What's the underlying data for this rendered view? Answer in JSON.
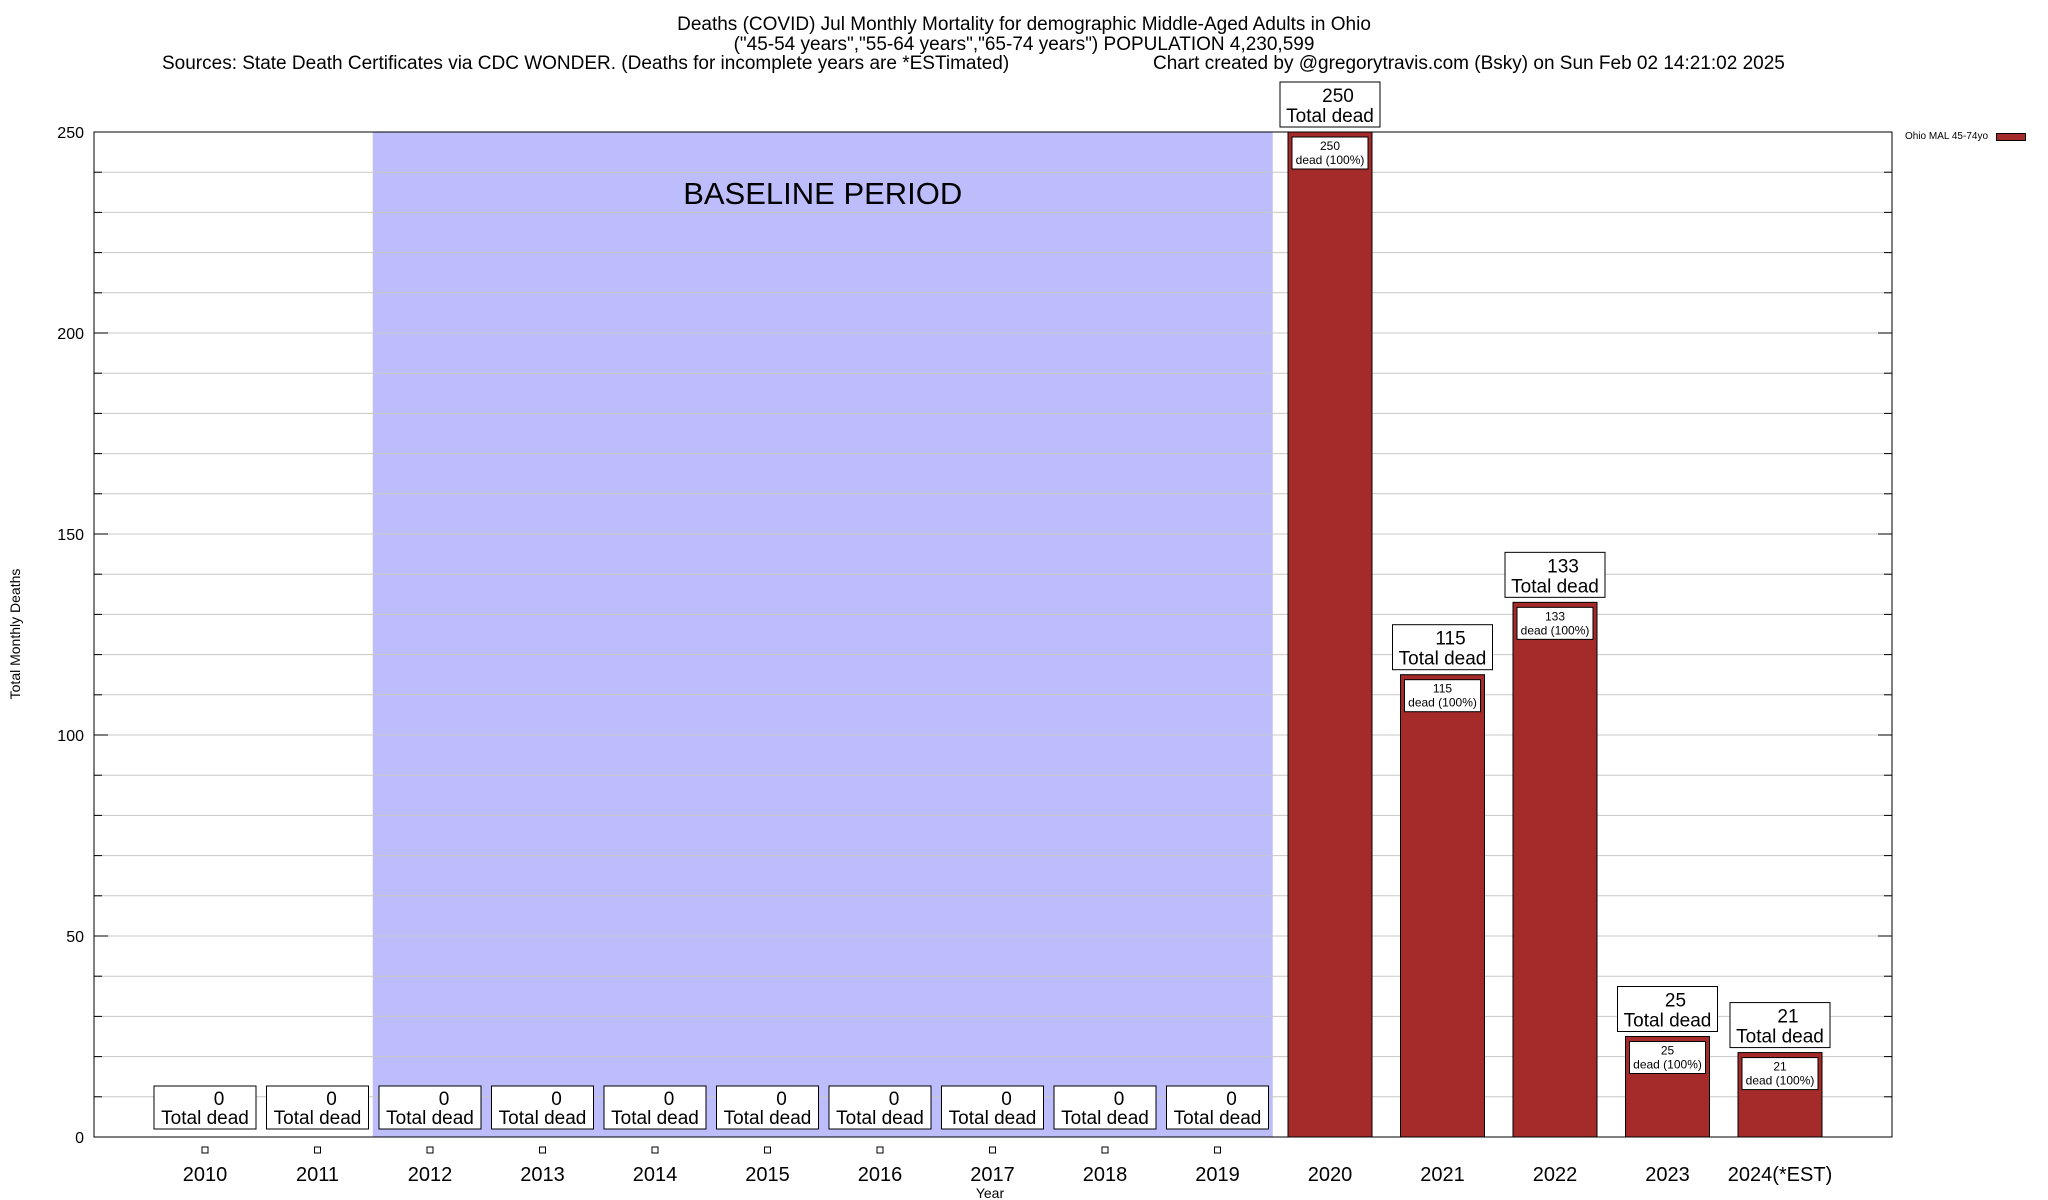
{
  "header": {
    "title_line1": "Deaths (COVID) Jul Monthly Mortality for demographic Middle-Aged Adults in Ohio",
    "title_line2": "(\"45-54 years\",\"55-64 years\",\"65-74 years\") POPULATION 4,230,599",
    "sources": "Sources: State Death Certificates via CDC WONDER. (Deaths for incomplete years are *ESTimated)",
    "credit": "Chart created by @gregorytravis.com (Bsky) on Sun Feb 02 14:21:02 2025"
  },
  "legend": {
    "label": "Ohio MAL 45-74yo",
    "color": "#a52a2a"
  },
  "chart_data": {
    "type": "bar",
    "xlabel": "Year",
    "ylabel": "Total Monthly Deaths",
    "ylim": [
      0,
      250
    ],
    "yticks": [
      0,
      50,
      100,
      150,
      200,
      250
    ],
    "grid": true,
    "legend_position": "top-right",
    "bar_color": "#a52a2a",
    "baseline_period": {
      "label": "BASELINE PERIOD",
      "from": "2012",
      "to": "2019",
      "color": "#bdbdfb"
    },
    "total_label_suffix": "Total dead",
    "inner_label_suffix": "dead (100%)",
    "categories": [
      "2010",
      "2011",
      "2012",
      "2013",
      "2014",
      "2015",
      "2016",
      "2017",
      "2018",
      "2019",
      "2020",
      "2021",
      "2022",
      "2023",
      "2024(*EST)"
    ],
    "values": [
      0,
      0,
      0,
      0,
      0,
      0,
      0,
      0,
      0,
      0,
      250,
      115,
      133,
      25,
      21
    ]
  }
}
